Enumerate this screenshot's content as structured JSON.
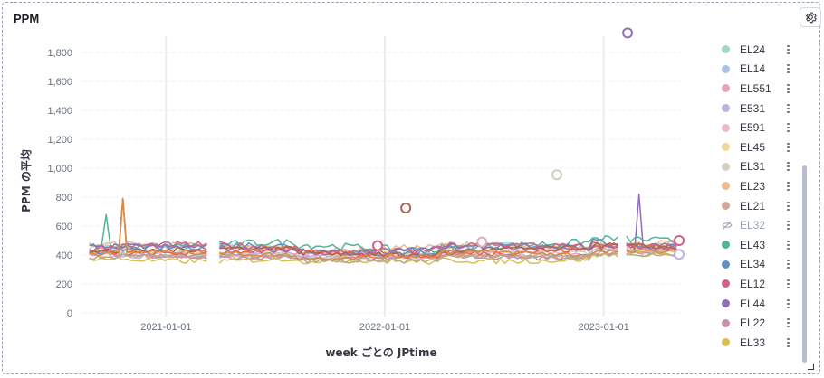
{
  "panel": {
    "title": "PPM"
  },
  "chart_data": {
    "type": "line",
    "xlabel": "week ごとの JPtime",
    "ylabel": "PPM の平均",
    "ylim": [
      0,
      1900
    ],
    "y_ticks": [
      0,
      200,
      400,
      600,
      800,
      1000,
      1200,
      1400,
      1600,
      1800
    ],
    "y_tick_labels": [
      "0",
      "200",
      "400",
      "600",
      "800",
      "1,000",
      "1,200",
      "1,400",
      "1,600",
      "1,800"
    ],
    "x_range": [
      "2020-08-16",
      "2023-05-10"
    ],
    "x_ticks": [
      "2021-01-01",
      "2022-01-01",
      "2023-01-01"
    ],
    "x_tick_labels": [
      "2021-01-01",
      "2022-01-01",
      "2023-01-01"
    ],
    "grid": true,
    "legend_placement": "right",
    "series": [
      {
        "name": "EL24",
        "color": "#a2d6c6",
        "base": 455,
        "amp": 25
      },
      {
        "name": "EL14",
        "color": "#a9c3e0",
        "base": 410,
        "amp": 20
      },
      {
        "name": "EL551",
        "color": "#e8a3bd",
        "base": 420,
        "amp": 22
      },
      {
        "name": "E531",
        "color": "#c1b2dd",
        "base": 400,
        "amp": 18
      },
      {
        "name": "E591",
        "color": "#e6bdcf",
        "base": 430,
        "amp": 20
      },
      {
        "name": "EL45",
        "color": "#ecd998",
        "base": 440,
        "amp": 22
      },
      {
        "name": "EL31",
        "color": "#d6cfc2",
        "base": 415,
        "amp": 18
      },
      {
        "name": "EL23",
        "color": "#f1b98f",
        "base": 460,
        "amp": 25
      },
      {
        "name": "EL21",
        "color": "#d3a898",
        "base": 395,
        "amp": 20
      },
      {
        "name": "EL32",
        "color": "#98a2b3",
        "base": 405,
        "amp": 18,
        "hidden": true
      },
      {
        "name": "EL43",
        "color": "#54b399",
        "base": 470,
        "amp": 30
      },
      {
        "name": "EL34",
        "color": "#6092c0",
        "base": 450,
        "amp": 30
      },
      {
        "name": "EL12",
        "color": "#d36086",
        "base": 455,
        "amp": 28
      },
      {
        "name": "EL44",
        "color": "#9170b8",
        "base": 445,
        "amp": 25
      },
      {
        "name": "EL22",
        "color": "#ca8eae",
        "base": 390,
        "amp": 20
      },
      {
        "name": "EL33",
        "color": "#d6bf57",
        "base": 370,
        "amp": 22
      },
      {
        "name": "",
        "color": "#e7664c",
        "base": 425,
        "amp": 25
      },
      {
        "name": "",
        "color": "#aa6556",
        "base": 435,
        "amp": 22
      },
      {
        "name": "",
        "color": "#b9a888",
        "base": 385,
        "amp": 18
      },
      {
        "name": "",
        "color": "#da8b45",
        "base": 410,
        "amp": 20
      }
    ],
    "spikes": [
      {
        "series": "EL43",
        "x": "2020-09-25",
        "y": 680
      },
      {
        "series": "",
        "x": "2020-10-22",
        "y": 790
      },
      {
        "series": "EL44",
        "x": "2023-03-02",
        "y": 820
      }
    ],
    "outlier_points": [
      {
        "x": "2022-02-05",
        "y": 725,
        "color": "#aa6556"
      },
      {
        "x": "2022-10-15",
        "y": 955,
        "color": "#d6cfc2"
      },
      {
        "x": "2023-02-10",
        "y": 1935,
        "color": "#9170b8"
      },
      {
        "x": "2023-05-07",
        "y": 500,
        "color": "#d36086"
      },
      {
        "x": "2023-05-07",
        "y": 405,
        "color": "#c1b2dd"
      },
      {
        "x": "2021-12-20",
        "y": 465,
        "color": "#d36086"
      },
      {
        "x": "2022-06-12",
        "y": 490,
        "color": "#e8a3bd"
      }
    ],
    "gaps": [
      [
        "2021-03-14",
        "2021-03-26"
      ],
      [
        "2023-02-01",
        "2023-02-05"
      ]
    ]
  },
  "legend": {
    "items": [
      "EL24",
      "EL14",
      "EL551",
      "E531",
      "E591",
      "EL45",
      "EL31",
      "EL23",
      "EL21",
      "EL32",
      "EL43",
      "EL34",
      "EL12",
      "EL44",
      "EL22",
      "EL33"
    ]
  },
  "icons": {
    "settings": "gear-icon",
    "hidden_series": "eye-closed-icon",
    "legend_action": "vertical-dots-icon"
  }
}
